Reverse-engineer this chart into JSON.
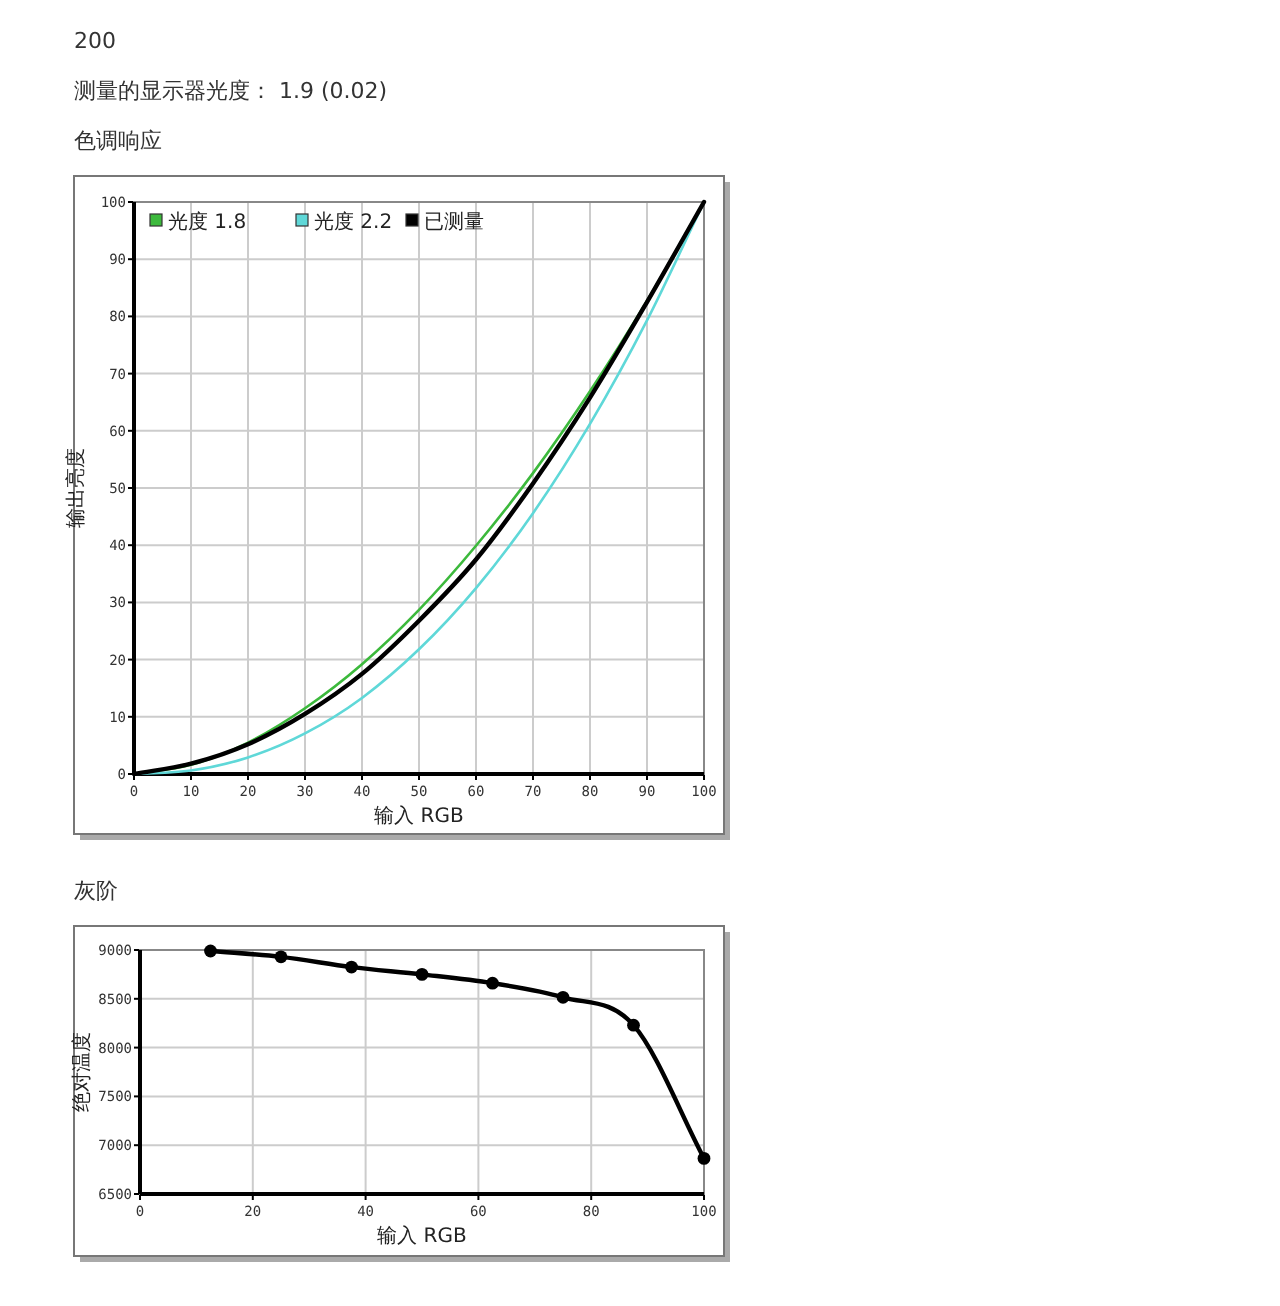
{
  "chart_data": [
    {
      "type": "line",
      "title": "色调响应",
      "annotations": [
        "200",
        "测量的显示器光度： 1.9 (0.02)"
      ],
      "xlabel": "输入 RGB",
      "ylabel": "输出亮度",
      "x": [
        0,
        10,
        20,
        30,
        40,
        50,
        60,
        70,
        80,
        90,
        100
      ],
      "series": [
        {
          "name": "光度 1.8",
          "color": "#3cb93c",
          "values": [
            0,
            1.6,
            5.5,
            11.5,
            19.2,
            28.7,
            39.9,
            52.6,
            66.9,
            82.7,
            100
          ]
        },
        {
          "name": "光度 2.2",
          "color": "#5fd8d8",
          "values": [
            0,
            0.6,
            2.9,
            7.1,
            13.3,
            21.8,
            32.5,
            45.6,
            61.2,
            79.3,
            100
          ]
        },
        {
          "name": "已测量",
          "color": "#000000",
          "values": [
            0,
            1.8,
            5.2,
            10.5,
            17.5,
            26.8,
            37.5,
            50.8,
            65.8,
            82.5,
            100
          ]
        }
      ],
      "xlim": [
        0,
        100
      ],
      "xticks": [
        0,
        10,
        20,
        30,
        40,
        50,
        60,
        70,
        80,
        90,
        100
      ],
      "ylim": [
        0,
        100
      ],
      "yticks": [
        0,
        10,
        20,
        30,
        40,
        50,
        60,
        70,
        80,
        90,
        100
      ],
      "grid": true,
      "legend": "top left",
      "marker": "none"
    },
    {
      "type": "line",
      "title": "灰阶",
      "xlabel": "输入 RGB",
      "ylabel": "绝对温度",
      "x": [
        12.5,
        25,
        37.5,
        50,
        62.5,
        75,
        87.5,
        100
      ],
      "series": [
        {
          "color": "#000000",
          "values": [
            8990,
            8930,
            8825,
            8750,
            8660,
            8515,
            8230,
            6865
          ]
        }
      ],
      "xlim": [
        0,
        100
      ],
      "xticks": [
        0,
        20,
        40,
        60,
        80,
        100
      ],
      "ylim": [
        6500,
        9000
      ],
      "yticks": [
        6500,
        7000,
        7500,
        8000,
        8500,
        9000
      ],
      "grid": true,
      "legend": false,
      "marker": "circle"
    }
  ]
}
